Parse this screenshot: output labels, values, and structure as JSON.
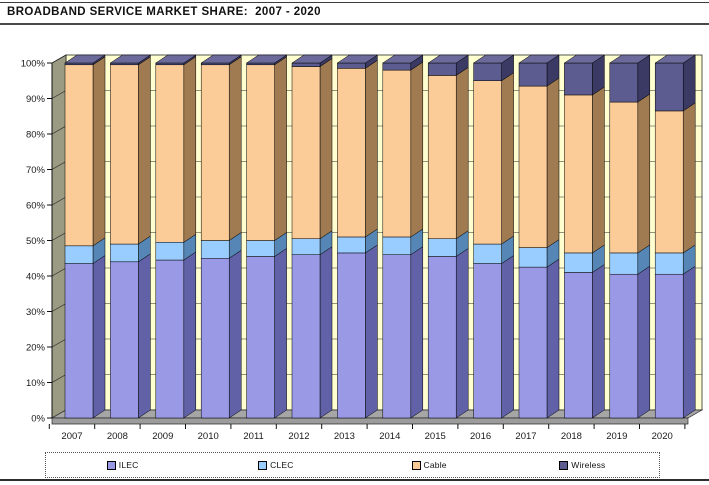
{
  "page": {
    "title": "BROADBAND SERVICE MARKET SHARE:  2007 - 2020"
  },
  "chart_data": {
    "type": "bar",
    "variant": "3d-stacked-percent-columns",
    "title": "BROADBAND SERVICE MARKET SHARE:  2007 - 2020",
    "stacking": "percent",
    "categories": [
      "2007",
      "2008",
      "2009",
      "2010",
      "2011",
      "2012",
      "2013",
      "2014",
      "2015",
      "2016",
      "2017",
      "2018",
      "2019",
      "2020"
    ],
    "series": [
      {
        "name": "ILEC",
        "color": "#9999E6",
        "side_color": "#6161A8",
        "values": [
          43.5,
          44,
          44.5,
          45,
          45.5,
          46,
          46.5,
          46,
          45.5,
          43.5,
          42.5,
          41,
          40.5,
          40.5
        ]
      },
      {
        "name": "CLEC",
        "color": "#99CCFF",
        "side_color": "#5586B5",
        "values": [
          5,
          5,
          5,
          5,
          4.5,
          4.5,
          4.5,
          5,
          5,
          5.5,
          5.5,
          5.5,
          6,
          6
        ]
      },
      {
        "name": "Cable",
        "color": "#FBCB98",
        "side_color": "#A07A50",
        "values": [
          51,
          50.5,
          50,
          49.5,
          49.5,
          48.5,
          47.5,
          47,
          46,
          46,
          45.5,
          44.5,
          42.5,
          40
        ]
      },
      {
        "name": "Wireless",
        "color": "#5D5C90",
        "side_color": "#3A3A64",
        "top_color": "#6B6A9B",
        "values": [
          0.5,
          0.5,
          0.5,
          0.5,
          0.5,
          1,
          1.5,
          2,
          3.5,
          5,
          6.5,
          9,
          11,
          13.5
        ]
      }
    ],
    "y_tick_labels": [
      "0%",
      "10%",
      "20%",
      "30%",
      "40%",
      "50%",
      "60%",
      "70%",
      "80%",
      "90%",
      "100%"
    ],
    "ylim": [
      0,
      100
    ],
    "grid": true,
    "legend_position": "bottom",
    "back_wall_color": "#FFFFCF",
    "side_wall_color": "#9B9B83",
    "floor_color": "#A6A6A6",
    "gridline_color": "#2a2a2a"
  }
}
